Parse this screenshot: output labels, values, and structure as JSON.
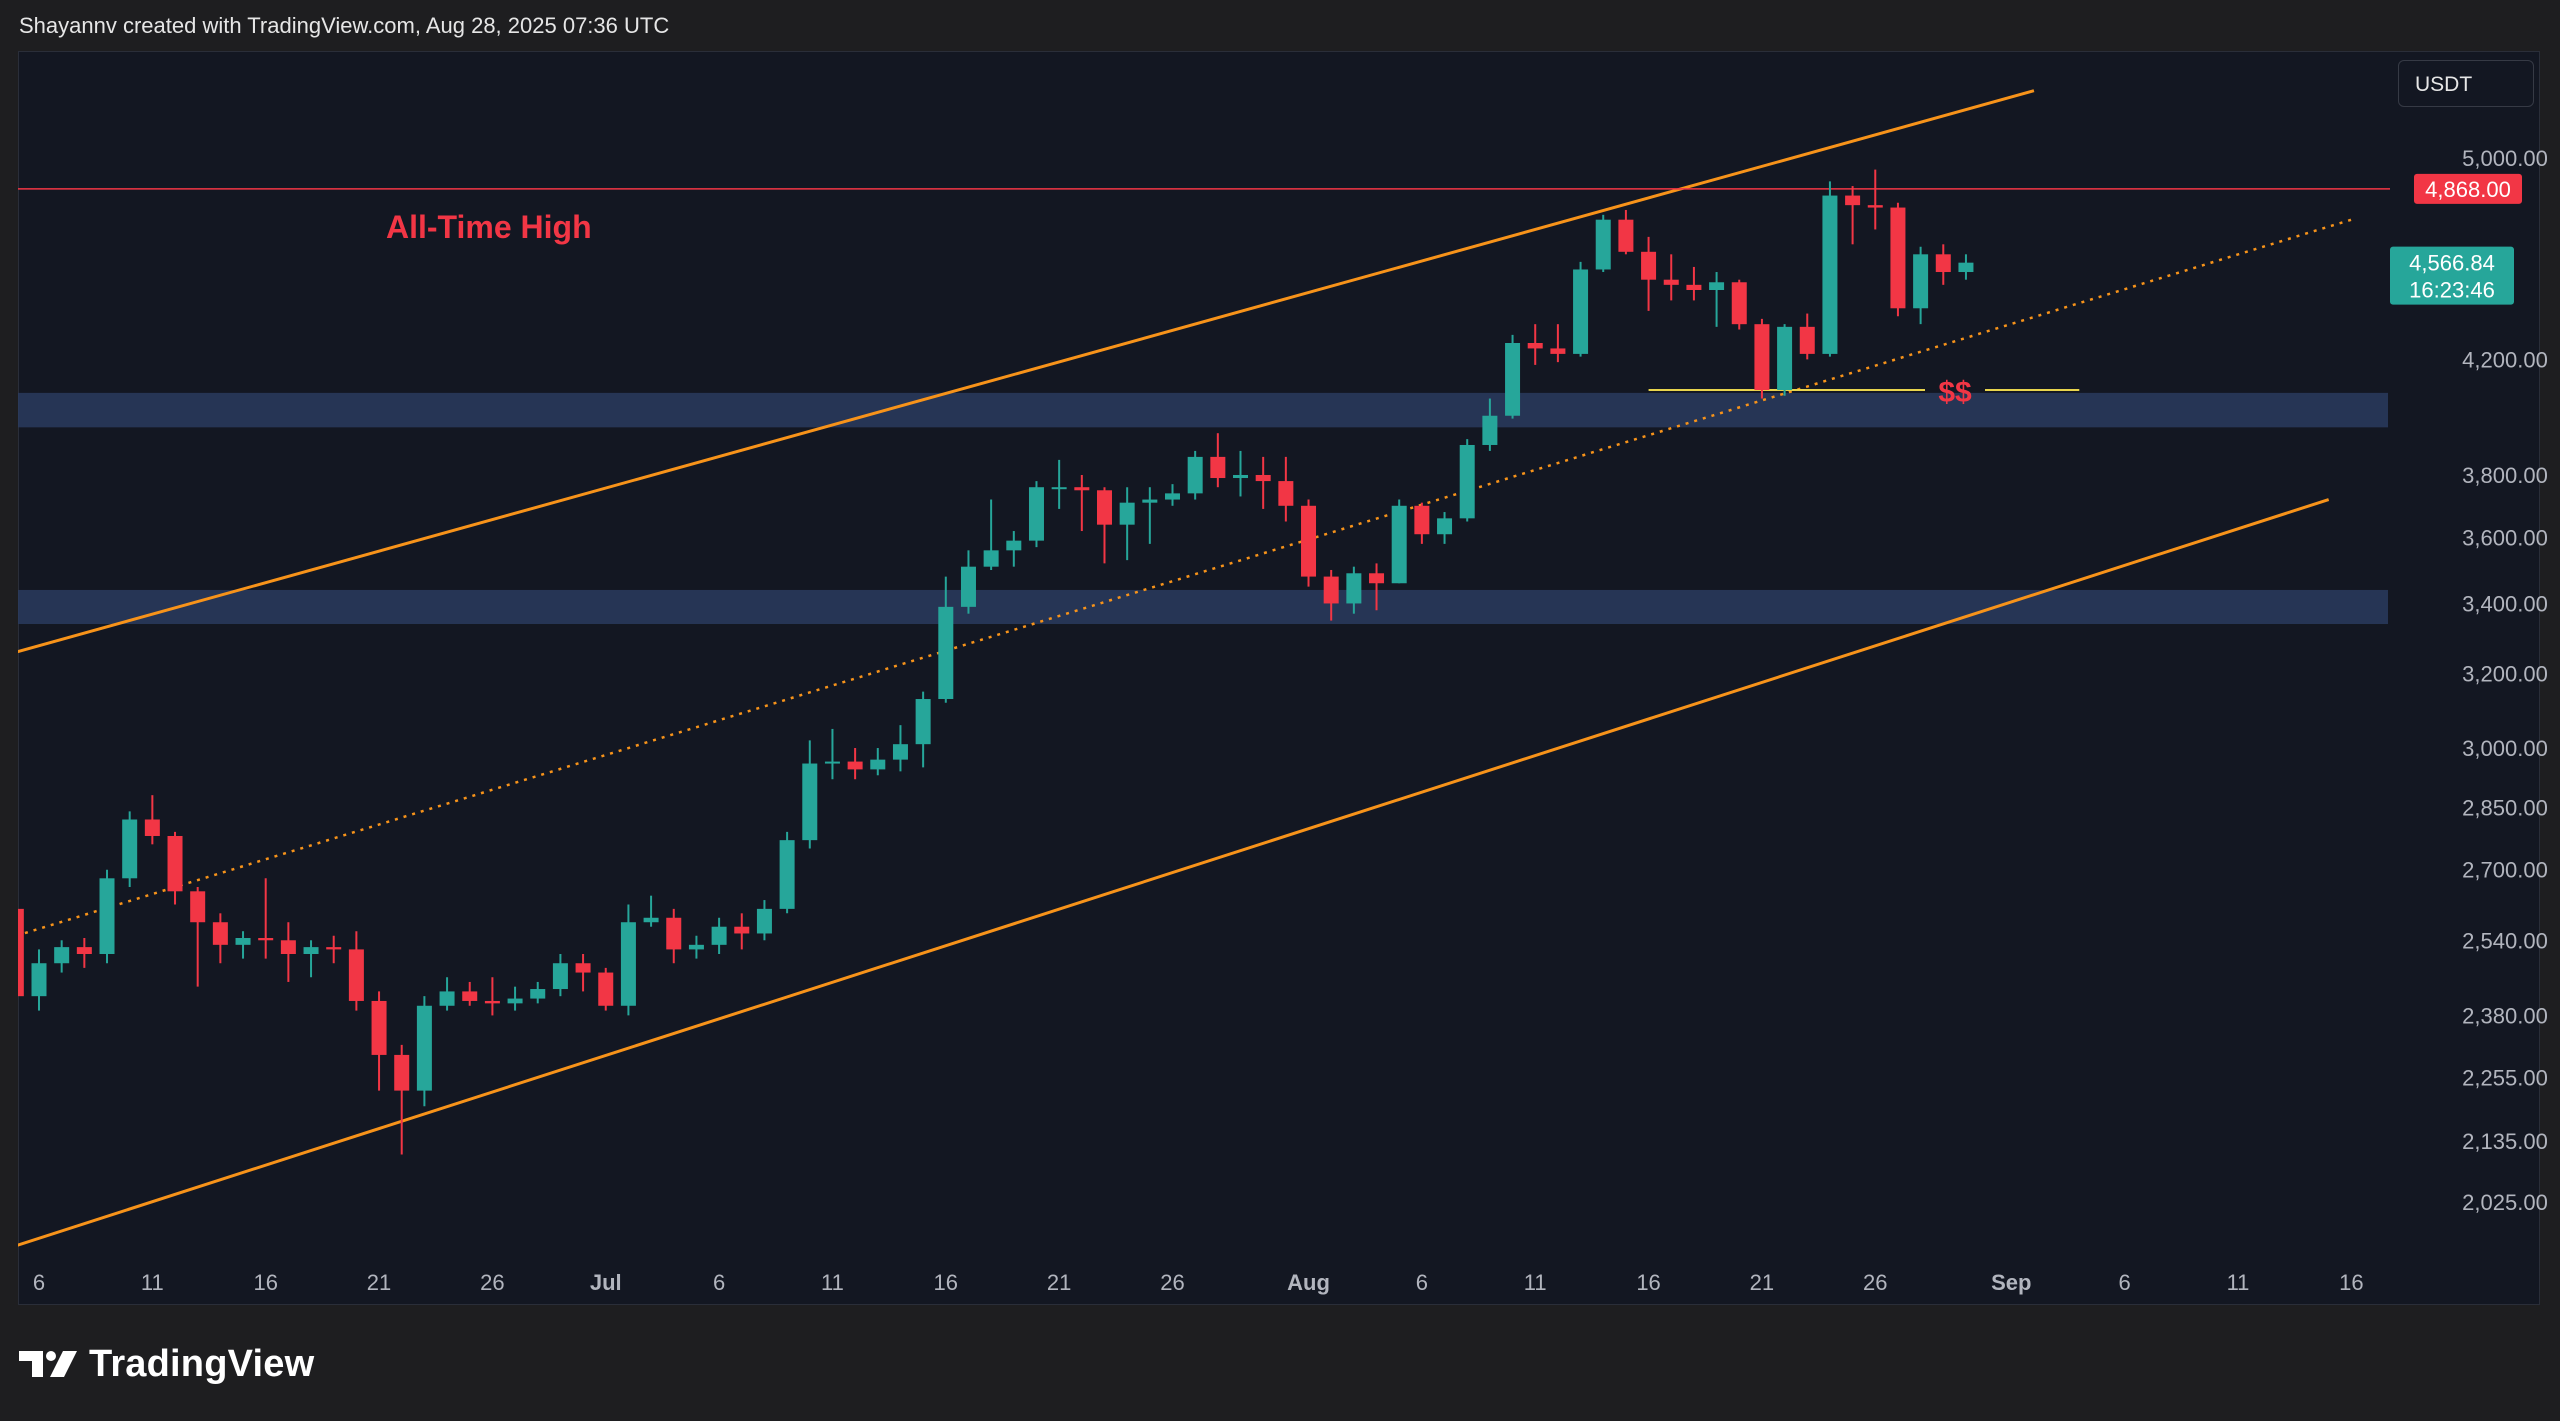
{
  "header": {
    "attribution": "Shayannv created with TradingView.com, Aug 28, 2025 07:36 UTC"
  },
  "currency_button": {
    "label": "USDT"
  },
  "footer": {
    "brand": "TradingView"
  },
  "colors": {
    "background": "#131722",
    "bullish": "#26a69a",
    "bearish": "#f23645",
    "channel": "#f7931a",
    "zone": "#2a3b5e",
    "ath_line": "#f23645",
    "liquidity_line": "#e8d44d"
  },
  "chart_data": {
    "type": "candlestick",
    "y_scale": "log",
    "ylim": [
      1950,
      5300
    ],
    "y_ticks": [
      {
        "value": 5000,
        "label": "5,000.00"
      },
      {
        "value": 4200,
        "label": "4,200.00"
      },
      {
        "value": 3800,
        "label": "3,800.00"
      },
      {
        "value": 3600,
        "label": "3,600.00"
      },
      {
        "value": 3400,
        "label": "3,400.00"
      },
      {
        "value": 3200,
        "label": "3,200.00"
      },
      {
        "value": 3000,
        "label": "3,000.00"
      },
      {
        "value": 2850,
        "label": "2,850.00"
      },
      {
        "value": 2700,
        "label": "2,700.00"
      },
      {
        "value": 2540,
        "label": "2,540.00"
      },
      {
        "value": 2380,
        "label": "2,380.00"
      },
      {
        "value": 2255,
        "label": "2,255.00"
      },
      {
        "value": 2135,
        "label": "2,135.00"
      },
      {
        "value": 2025,
        "label": "2,025.00"
      }
    ],
    "x_ticks": [
      {
        "date": "2025-06-06",
        "label": "6",
        "bold": false
      },
      {
        "date": "2025-06-11",
        "label": "11",
        "bold": false
      },
      {
        "date": "2025-06-16",
        "label": "16",
        "bold": false
      },
      {
        "date": "2025-06-21",
        "label": "21",
        "bold": false
      },
      {
        "date": "2025-06-26",
        "label": "26",
        "bold": false
      },
      {
        "date": "2025-07-01",
        "label": "Jul",
        "bold": true
      },
      {
        "date": "2025-07-06",
        "label": "6",
        "bold": false
      },
      {
        "date": "2025-07-11",
        "label": "11",
        "bold": false
      },
      {
        "date": "2025-07-16",
        "label": "16",
        "bold": false
      },
      {
        "date": "2025-07-21",
        "label": "21",
        "bold": false
      },
      {
        "date": "2025-07-26",
        "label": "26",
        "bold": false
      },
      {
        "date": "2025-08-01",
        "label": "Aug",
        "bold": true
      },
      {
        "date": "2025-08-06",
        "label": "6",
        "bold": false
      },
      {
        "date": "2025-08-11",
        "label": "11",
        "bold": false
      },
      {
        "date": "2025-08-16",
        "label": "16",
        "bold": false
      },
      {
        "date": "2025-08-21",
        "label": "21",
        "bold": false
      },
      {
        "date": "2025-08-26",
        "label": "26",
        "bold": false
      },
      {
        "date": "2025-09-01",
        "label": "Sep",
        "bold": true
      },
      {
        "date": "2025-09-06",
        "label": "6",
        "bold": false
      },
      {
        "date": "2025-09-11",
        "label": "11",
        "bold": false
      },
      {
        "date": "2025-09-16",
        "label": "16",
        "bold": false
      }
    ],
    "candles": [
      {
        "date": "2025-06-05",
        "o": 2610,
        "h": 2640,
        "l": 2390,
        "c": 2420
      },
      {
        "date": "2025-06-06",
        "o": 2420,
        "h": 2520,
        "l": 2390,
        "c": 2490
      },
      {
        "date": "2025-06-07",
        "o": 2490,
        "h": 2540,
        "l": 2470,
        "c": 2525
      },
      {
        "date": "2025-06-08",
        "o": 2525,
        "h": 2545,
        "l": 2480,
        "c": 2510
      },
      {
        "date": "2025-06-09",
        "o": 2510,
        "h": 2700,
        "l": 2490,
        "c": 2680
      },
      {
        "date": "2025-06-10",
        "o": 2680,
        "h": 2840,
        "l": 2660,
        "c": 2820
      },
      {
        "date": "2025-06-11",
        "o": 2820,
        "h": 2880,
        "l": 2760,
        "c": 2780
      },
      {
        "date": "2025-06-12",
        "o": 2780,
        "h": 2790,
        "l": 2620,
        "c": 2650
      },
      {
        "date": "2025-06-13",
        "o": 2650,
        "h": 2660,
        "l": 2440,
        "c": 2580
      },
      {
        "date": "2025-06-14",
        "o": 2580,
        "h": 2600,
        "l": 2490,
        "c": 2530
      },
      {
        "date": "2025-06-15",
        "o": 2530,
        "h": 2560,
        "l": 2500,
        "c": 2545
      },
      {
        "date": "2025-06-16",
        "o": 2545,
        "h": 2680,
        "l": 2500,
        "c": 2540
      },
      {
        "date": "2025-06-17",
        "o": 2540,
        "h": 2580,
        "l": 2450,
        "c": 2510
      },
      {
        "date": "2025-06-18",
        "o": 2510,
        "h": 2540,
        "l": 2460,
        "c": 2525
      },
      {
        "date": "2025-06-19",
        "o": 2525,
        "h": 2550,
        "l": 2490,
        "c": 2520
      },
      {
        "date": "2025-06-20",
        "o": 2520,
        "h": 2560,
        "l": 2390,
        "c": 2410
      },
      {
        "date": "2025-06-21",
        "o": 2410,
        "h": 2430,
        "l": 2230,
        "c": 2300
      },
      {
        "date": "2025-06-22",
        "o": 2300,
        "h": 2320,
        "l": 2110,
        "c": 2230
      },
      {
        "date": "2025-06-23",
        "o": 2230,
        "h": 2420,
        "l": 2200,
        "c": 2400
      },
      {
        "date": "2025-06-24",
        "o": 2400,
        "h": 2460,
        "l": 2390,
        "c": 2430
      },
      {
        "date": "2025-06-25",
        "o": 2430,
        "h": 2450,
        "l": 2400,
        "c": 2410
      },
      {
        "date": "2025-06-26",
        "o": 2410,
        "h": 2460,
        "l": 2380,
        "c": 2405
      },
      {
        "date": "2025-06-27",
        "o": 2405,
        "h": 2440,
        "l": 2390,
        "c": 2415
      },
      {
        "date": "2025-06-28",
        "o": 2415,
        "h": 2450,
        "l": 2405,
        "c": 2435
      },
      {
        "date": "2025-06-29",
        "o": 2435,
        "h": 2510,
        "l": 2420,
        "c": 2490
      },
      {
        "date": "2025-06-30",
        "o": 2490,
        "h": 2510,
        "l": 2430,
        "c": 2470
      },
      {
        "date": "2025-07-01",
        "o": 2470,
        "h": 2480,
        "l": 2390,
        "c": 2400
      },
      {
        "date": "2025-07-02",
        "o": 2400,
        "h": 2620,
        "l": 2380,
        "c": 2580
      },
      {
        "date": "2025-07-03",
        "o": 2580,
        "h": 2640,
        "l": 2570,
        "c": 2590
      },
      {
        "date": "2025-07-04",
        "o": 2590,
        "h": 2610,
        "l": 2490,
        "c": 2520
      },
      {
        "date": "2025-07-05",
        "o": 2520,
        "h": 2550,
        "l": 2500,
        "c": 2530
      },
      {
        "date": "2025-07-06",
        "o": 2530,
        "h": 2590,
        "l": 2510,
        "c": 2570
      },
      {
        "date": "2025-07-07",
        "o": 2570,
        "h": 2600,
        "l": 2520,
        "c": 2555
      },
      {
        "date": "2025-07-08",
        "o": 2555,
        "h": 2630,
        "l": 2540,
        "c": 2610
      },
      {
        "date": "2025-07-09",
        "o": 2610,
        "h": 2790,
        "l": 2600,
        "c": 2770
      },
      {
        "date": "2025-07-10",
        "o": 2770,
        "h": 3020,
        "l": 2750,
        "c": 2960
      },
      {
        "date": "2025-07-11",
        "o": 2960,
        "h": 3050,
        "l": 2920,
        "c": 2965
      },
      {
        "date": "2025-07-12",
        "o": 2965,
        "h": 3000,
        "l": 2920,
        "c": 2945
      },
      {
        "date": "2025-07-13",
        "o": 2945,
        "h": 3000,
        "l": 2930,
        "c": 2970
      },
      {
        "date": "2025-07-14",
        "o": 2970,
        "h": 3060,
        "l": 2940,
        "c": 3010
      },
      {
        "date": "2025-07-15",
        "o": 3010,
        "h": 3150,
        "l": 2950,
        "c": 3130
      },
      {
        "date": "2025-07-16",
        "o": 3130,
        "h": 3480,
        "l": 3120,
        "c": 3390
      },
      {
        "date": "2025-07-17",
        "o": 3390,
        "h": 3560,
        "l": 3370,
        "c": 3510
      },
      {
        "date": "2025-07-18",
        "o": 3510,
        "h": 3720,
        "l": 3500,
        "c": 3560
      },
      {
        "date": "2025-07-19",
        "o": 3560,
        "h": 3620,
        "l": 3510,
        "c": 3590
      },
      {
        "date": "2025-07-20",
        "o": 3590,
        "h": 3780,
        "l": 3570,
        "c": 3760
      },
      {
        "date": "2025-07-21",
        "o": 3760,
        "h": 3850,
        "l": 3690,
        "c": 3760
      },
      {
        "date": "2025-07-22",
        "o": 3760,
        "h": 3800,
        "l": 3620,
        "c": 3750
      },
      {
        "date": "2025-07-23",
        "o": 3750,
        "h": 3760,
        "l": 3520,
        "c": 3640
      },
      {
        "date": "2025-07-24",
        "o": 3640,
        "h": 3760,
        "l": 3530,
        "c": 3710
      },
      {
        "date": "2025-07-25",
        "o": 3710,
        "h": 3760,
        "l": 3580,
        "c": 3720
      },
      {
        "date": "2025-07-26",
        "o": 3720,
        "h": 3770,
        "l": 3700,
        "c": 3740
      },
      {
        "date": "2025-07-27",
        "o": 3740,
        "h": 3880,
        "l": 3720,
        "c": 3860
      },
      {
        "date": "2025-07-28",
        "o": 3860,
        "h": 3940,
        "l": 3760,
        "c": 3790
      },
      {
        "date": "2025-07-29",
        "o": 3790,
        "h": 3880,
        "l": 3730,
        "c": 3800
      },
      {
        "date": "2025-07-30",
        "o": 3800,
        "h": 3860,
        "l": 3690,
        "c": 3780
      },
      {
        "date": "2025-07-31",
        "o": 3780,
        "h": 3860,
        "l": 3650,
        "c": 3700
      },
      {
        "date": "2025-08-01",
        "o": 3700,
        "h": 3720,
        "l": 3450,
        "c": 3480
      },
      {
        "date": "2025-08-02",
        "o": 3480,
        "h": 3500,
        "l": 3350,
        "c": 3400
      },
      {
        "date": "2025-08-03",
        "o": 3400,
        "h": 3510,
        "l": 3370,
        "c": 3490
      },
      {
        "date": "2025-08-04",
        "o": 3490,
        "h": 3520,
        "l": 3380,
        "c": 3460
      },
      {
        "date": "2025-08-05",
        "o": 3460,
        "h": 3720,
        "l": 3460,
        "c": 3700
      },
      {
        "date": "2025-08-06",
        "o": 3700,
        "h": 3710,
        "l": 3580,
        "c": 3610
      },
      {
        "date": "2025-08-07",
        "o": 3610,
        "h": 3680,
        "l": 3580,
        "c": 3660
      },
      {
        "date": "2025-08-08",
        "o": 3660,
        "h": 3920,
        "l": 3650,
        "c": 3900
      },
      {
        "date": "2025-08-09",
        "o": 3900,
        "h": 4060,
        "l": 3880,
        "c": 4000
      },
      {
        "date": "2025-08-10",
        "o": 4000,
        "h": 4290,
        "l": 3990,
        "c": 4260
      },
      {
        "date": "2025-08-11",
        "o": 4260,
        "h": 4330,
        "l": 4180,
        "c": 4240
      },
      {
        "date": "2025-08-12",
        "o": 4240,
        "h": 4330,
        "l": 4190,
        "c": 4220
      },
      {
        "date": "2025-08-13",
        "o": 4220,
        "h": 4570,
        "l": 4210,
        "c": 4540
      },
      {
        "date": "2025-08-14",
        "o": 4540,
        "h": 4760,
        "l": 4530,
        "c": 4740
      },
      {
        "date": "2025-08-15",
        "o": 4740,
        "h": 4780,
        "l": 4600,
        "c": 4610
      },
      {
        "date": "2025-08-16",
        "o": 4610,
        "h": 4670,
        "l": 4380,
        "c": 4500
      },
      {
        "date": "2025-08-17",
        "o": 4500,
        "h": 4600,
        "l": 4420,
        "c": 4480
      },
      {
        "date": "2025-08-18",
        "o": 4480,
        "h": 4550,
        "l": 4420,
        "c": 4460
      },
      {
        "date": "2025-08-19",
        "o": 4460,
        "h": 4530,
        "l": 4320,
        "c": 4490
      },
      {
        "date": "2025-08-20",
        "o": 4490,
        "h": 4500,
        "l": 4310,
        "c": 4330
      },
      {
        "date": "2025-08-21",
        "o": 4330,
        "h": 4350,
        "l": 4060,
        "c": 4090
      },
      {
        "date": "2025-08-22",
        "o": 4090,
        "h": 4330,
        "l": 4070,
        "c": 4320
      },
      {
        "date": "2025-08-23",
        "o": 4320,
        "h": 4370,
        "l": 4200,
        "c": 4220
      },
      {
        "date": "2025-08-24",
        "o": 4220,
        "h": 4900,
        "l": 4210,
        "c": 4840
      },
      {
        "date": "2025-08-25",
        "o": 4840,
        "h": 4880,
        "l": 4640,
        "c": 4800
      },
      {
        "date": "2025-08-26",
        "o": 4800,
        "h": 4950,
        "l": 4700,
        "c": 4790
      },
      {
        "date": "2025-08-27",
        "o": 4790,
        "h": 4810,
        "l": 4360,
        "c": 4390
      },
      {
        "date": "2025-08-28",
        "o": 4390,
        "h": 4630,
        "l": 4330,
        "c": 4600
      },
      {
        "date": "2025-08-29",
        "o": 4600,
        "h": 4640,
        "l": 4480,
        "c": 4530
      },
      {
        "date": "2025-08-30",
        "o": 4530,
        "h": 4600,
        "l": 4500,
        "c": 4566.84
      }
    ],
    "annotations": {
      "ath_label": "All-Time High",
      "ath_price": 4868,
      "ath_badge": "4,868.00",
      "liquidity_label": "$$",
      "liquidity_price": 4090,
      "liquidity_from": "2025-08-16",
      "liquidity_to": "2025-09-04",
      "current_price_badge": "4,566.84",
      "countdown": "16:23:46",
      "current_price": 4566.84
    },
    "zones": [
      {
        "name": "upper-supply-zone",
        "from": 3960,
        "to": 4080
      },
      {
        "name": "lower-support-zone",
        "from": 3340,
        "to": 3440
      }
    ],
    "channel": {
      "upper": [
        {
          "date": "2025-06-05",
          "price": 3260
        },
        {
          "date": "2025-09-02",
          "price": 5300
        }
      ],
      "lower": [
        {
          "date": "2025-06-05",
          "price": 1950
        },
        {
          "date": "2025-09-15",
          "price": 3720
        }
      ],
      "mid": [
        {
          "date": "2025-06-05",
          "price": 2550
        },
        {
          "date": "2025-09-16",
          "price": 4740
        }
      ]
    }
  }
}
